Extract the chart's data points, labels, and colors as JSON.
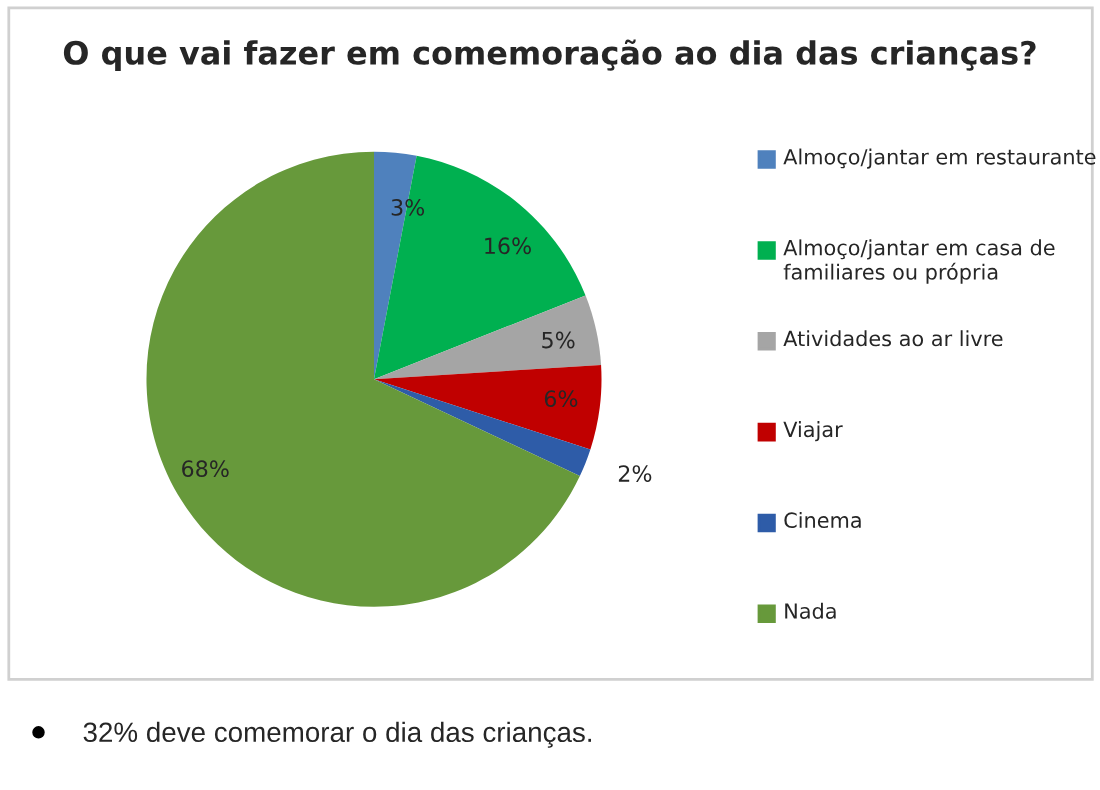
{
  "chart_data": {
    "type": "pie",
    "title": "O que vai fazer em comemoração ao dia das crianças?",
    "categories": [
      "Almoço/jantar em restaurante",
      "Almoço/jantar em casa de familiares ou própria",
      "Atividades ao ar livre",
      "Viajar",
      "Cinema",
      "Nada"
    ],
    "values": [
      3,
      16,
      5,
      6,
      2,
      68
    ],
    "value_labels": [
      "3%",
      "16%",
      "5%",
      "6%",
      "2%",
      "68%"
    ],
    "colors": [
      "#4f81bd",
      "#00b050",
      "#a5a5a5",
      "#c00000",
      "#2e5ca8",
      "#67993b"
    ],
    "legend": "right",
    "annotations": [
      "32% deve comemorar o dia das crianças."
    ]
  }
}
